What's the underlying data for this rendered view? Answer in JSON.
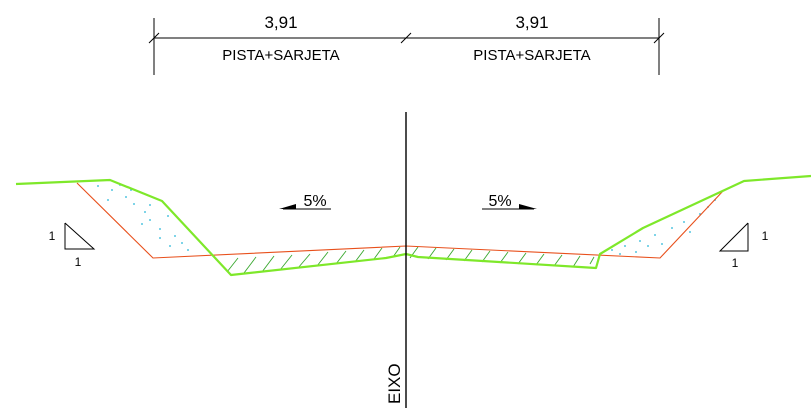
{
  "dimensions": {
    "left": {
      "value": "3,91",
      "label": "PISTA+SARJETA"
    },
    "right": {
      "value": "3,91",
      "label": "PISTA+SARJETA"
    }
  },
  "slopes": {
    "left": {
      "text": "5%"
    },
    "right": {
      "text": "5%"
    }
  },
  "talud_left": {
    "vertical": "1",
    "horizontal": "1"
  },
  "talud_right": {
    "vertical": "1",
    "horizontal": "1"
  },
  "axis": {
    "label": "EIXO"
  },
  "colors": {
    "ground_line": "#7ee82a",
    "design_line": "#e8501c",
    "hatch": "#3aa830",
    "fill_dots": "#22b5d8",
    "ink": "#000000"
  }
}
